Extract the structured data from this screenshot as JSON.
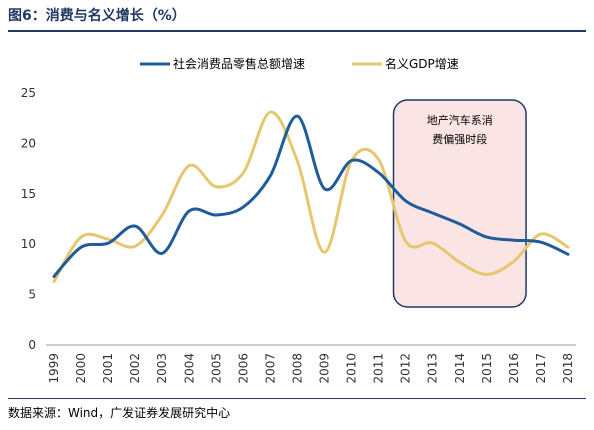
{
  "figure": {
    "title": "图6：消费与名义增长（%）",
    "source": "数据来源：Wind，广发证券发展研究中心"
  },
  "chart_data": {
    "type": "line",
    "title": "",
    "xlabel": "",
    "ylabel": "",
    "x": [
      "1999",
      "2000",
      "2001",
      "2002",
      "2003",
      "2004",
      "2005",
      "2006",
      "2007",
      "2008",
      "2009",
      "2010",
      "2011",
      "2012",
      "2013",
      "2014",
      "2015",
      "2016",
      "2017",
      "2018"
    ],
    "ylim": [
      0,
      25
    ],
    "yticks": [
      0,
      5,
      10,
      15,
      20,
      25
    ],
    "grid": false,
    "legend_position": "top",
    "series": [
      {
        "name": "社会消费品零售总额增速",
        "color": "#1f5c99",
        "values": [
          6.8,
          9.7,
          10.1,
          11.8,
          9.1,
          13.3,
          12.9,
          13.7,
          16.8,
          22.7,
          15.5,
          18.3,
          17.1,
          14.3,
          13.1,
          12.0,
          10.7,
          10.4,
          10.2,
          9.0
        ]
      },
      {
        "name": "名义GDP增速",
        "color": "#e6c66e",
        "values": [
          6.3,
          10.7,
          10.5,
          9.8,
          12.9,
          17.8,
          15.7,
          17.1,
          23.1,
          18.2,
          9.2,
          18.3,
          18.4,
          10.3,
          10.1,
          8.2,
          7.0,
          8.3,
          11.0,
          9.7
        ]
      }
    ],
    "annotation": {
      "lines": [
        "地产汽车系消",
        "费偏强时段"
      ],
      "from": "2012",
      "to": "2016",
      "fill": "#fbe4e4",
      "stroke": "#1f3864"
    }
  }
}
